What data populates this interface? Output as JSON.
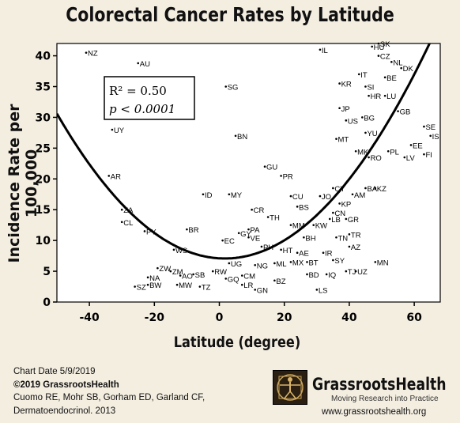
{
  "chart_data": {
    "type": "scatter",
    "title": "Colorectal Cancer Rates by Latitude",
    "xlabel": "Latitude (degree)",
    "ylabel": "Incidence Rate per 100,000",
    "xlim": [
      -50,
      68
    ],
    "ylim": [
      0,
      42
    ],
    "xticks": [
      -40,
      -20,
      0,
      20,
      40,
      60
    ],
    "yticks": [
      0,
      5,
      10,
      15,
      20,
      25,
      30,
      35,
      40
    ],
    "stats_box": {
      "r2": "R² = 0.50",
      "p": "p < 0.0001"
    },
    "fit_curve": {
      "type": "quadratic",
      "a": 0.0088,
      "b": -0.03,
      "c": 7.1
    },
    "points": [
      {
        "label": "NZ",
        "x": -41,
        "y": 40.5
      },
      {
        "label": "AU",
        "x": -25,
        "y": 38.8
      },
      {
        "label": "UY",
        "x": -33,
        "y": 28
      },
      {
        "label": "AR",
        "x": -34,
        "y": 20.5
      },
      {
        "label": "ZA",
        "x": -30,
        "y": 15
      },
      {
        "label": "CL",
        "x": -30,
        "y": 13
      },
      {
        "label": "PY",
        "x": -23,
        "y": 11.5
      },
      {
        "label": "BR",
        "x": -10,
        "y": 11.8
      },
      {
        "label": "WS",
        "x": -14,
        "y": 8.5
      },
      {
        "label": "ZW",
        "x": -19,
        "y": 5.5
      },
      {
        "label": "ZM",
        "x": -15,
        "y": 5
      },
      {
        "label": "NA",
        "x": -22,
        "y": 4
      },
      {
        "label": "SZ",
        "x": -26,
        "y": 2.5
      },
      {
        "label": "BW",
        "x": -22,
        "y": 2.8
      },
      {
        "label": "AO",
        "x": -12,
        "y": 4.3
      },
      {
        "label": "SB",
        "x": -8,
        "y": 4.5
      },
      {
        "label": "MW",
        "x": -13,
        "y": 2.8
      },
      {
        "label": "TZ",
        "x": -6,
        "y": 2.5
      },
      {
        "label": "RW",
        "x": -2,
        "y": 5
      },
      {
        "label": "GQ",
        "x": 2,
        "y": 3.8
      },
      {
        "label": "UG",
        "x": 3,
        "y": 6.3
      },
      {
        "label": "LR",
        "x": 7,
        "y": 2.8
      },
      {
        "label": "CM",
        "x": 7,
        "y": 4.3
      },
      {
        "label": "GN",
        "x": 11,
        "y": 2
      },
      {
        "label": "BZ",
        "x": 17,
        "y": 3.5
      },
      {
        "label": "NG",
        "x": 11,
        "y": 6
      },
      {
        "label": "ML",
        "x": 17,
        "y": 6.3
      },
      {
        "label": "MX",
        "x": 22,
        "y": 6.5
      },
      {
        "label": "BT",
        "x": 27,
        "y": 6.5
      },
      {
        "label": "SY",
        "x": 35,
        "y": 6.8
      },
      {
        "label": "BD",
        "x": 27,
        "y": 4.5
      },
      {
        "label": "IQ",
        "x": 33,
        "y": 4.5
      },
      {
        "label": "TJ",
        "x": 39,
        "y": 5
      },
      {
        "label": "UZ",
        "x": 42,
        "y": 5
      },
      {
        "label": "LS",
        "x": 30,
        "y": 2
      },
      {
        "label": "MN",
        "x": 48,
        "y": 6.5
      },
      {
        "label": "AE",
        "x": 24,
        "y": 8
      },
      {
        "label": "IR",
        "x": 32,
        "y": 8
      },
      {
        "label": "HT",
        "x": 19,
        "y": 8.5
      },
      {
        "label": "PH",
        "x": 13,
        "y": 9
      },
      {
        "label": "AZ",
        "x": 40,
        "y": 9
      },
      {
        "label": "EC",
        "x": 1,
        "y": 10
      },
      {
        "label": "GY",
        "x": 6,
        "y": 11.2
      },
      {
        "label": "PA",
        "x": 9,
        "y": 11.8
      },
      {
        "label": "VE",
        "x": 9,
        "y": 10.5
      },
      {
        "label": "BH",
        "x": 26,
        "y": 10.5
      },
      {
        "label": "TN",
        "x": 36,
        "y": 10.5
      },
      {
        "label": "TR",
        "x": 40,
        "y": 11
      },
      {
        "label": "MM",
        "x": 22,
        "y": 12.5
      },
      {
        "label": "KW",
        "x": 29,
        "y": 12.5
      },
      {
        "label": "LB",
        "x": 34,
        "y": 13.5
      },
      {
        "label": "GR",
        "x": 39,
        "y": 13.5
      },
      {
        "label": "CN",
        "x": 35,
        "y": 14.5
      },
      {
        "label": "TH",
        "x": 15,
        "y": 13.8
      },
      {
        "label": "CR",
        "x": 10,
        "y": 15
      },
      {
        "label": "BS",
        "x": 24,
        "y": 15.5
      },
      {
        "label": "KP",
        "x": 37,
        "y": 16
      },
      {
        "label": "CU",
        "x": 22,
        "y": 17.2
      },
      {
        "label": "JO",
        "x": 31,
        "y": 17.2
      },
      {
        "label": "AM",
        "x": 41,
        "y": 17.5
      },
      {
        "label": "CY",
        "x": 35,
        "y": 18.5
      },
      {
        "label": "BA",
        "x": 45,
        "y": 18.5
      },
      {
        "label": "KZ",
        "x": 48,
        "y": 18.5
      },
      {
        "label": "ID",
        "x": -5,
        "y": 17.5
      },
      {
        "label": "MY",
        "x": 3,
        "y": 17.5
      },
      {
        "label": "PR",
        "x": 19,
        "y": 20.5
      },
      {
        "label": "GU",
        "x": 14,
        "y": 22
      },
      {
        "label": "BN",
        "x": 5,
        "y": 27
      },
      {
        "label": "SG",
        "x": 2,
        "y": 35
      },
      {
        "label": "MT",
        "x": 36,
        "y": 26.5
      },
      {
        "label": "MK",
        "x": 42,
        "y": 24.5
      },
      {
        "label": "RO",
        "x": 46,
        "y": 23.5
      },
      {
        "label": "YU",
        "x": 45,
        "y": 27.5
      },
      {
        "label": "PL",
        "x": 52,
        "y": 24.5
      },
      {
        "label": "LV",
        "x": 57,
        "y": 23.5
      },
      {
        "label": "EE",
        "x": 59,
        "y": 25.5
      },
      {
        "label": "FI",
        "x": 63,
        "y": 24
      },
      {
        "label": "SE",
        "x": 63,
        "y": 28.5
      },
      {
        "label": "IS",
        "x": 65,
        "y": 27
      },
      {
        "label": "GB",
        "x": 55,
        "y": 31
      },
      {
        "label": "JP",
        "x": 37,
        "y": 31.5
      },
      {
        "label": "US",
        "x": 39,
        "y": 29.5
      },
      {
        "label": "BG",
        "x": 44,
        "y": 30
      },
      {
        "label": "HR",
        "x": 46,
        "y": 33.5
      },
      {
        "label": "LU",
        "x": 51,
        "y": 33.5
      },
      {
        "label": "KR",
        "x": 37,
        "y": 35.5
      },
      {
        "label": "SI",
        "x": 45,
        "y": 35
      },
      {
        "label": "IT",
        "x": 43,
        "y": 37
      },
      {
        "label": "BE",
        "x": 51,
        "y": 36.5
      },
      {
        "label": "NL",
        "x": 53,
        "y": 39
      },
      {
        "label": "DK",
        "x": 56,
        "y": 38
      },
      {
        "label": "CZ",
        "x": 49,
        "y": 40
      },
      {
        "label": "HU",
        "x": 47,
        "y": 41.5
      },
      {
        "label": "SK",
        "x": 49,
        "y": 42
      },
      {
        "label": "IL",
        "x": 31,
        "y": 41
      }
    ]
  },
  "footer": {
    "date": "Chart Date 5/9/2019",
    "copyright": "©2019 GrassrootsHealth",
    "authors": "Cuomo RE, Mohr SB, Gorham ED, Garland CF,",
    "journal": "Dermatoendocrinol. 2013"
  },
  "brand": {
    "name": "GrassrootsHealth",
    "tagline": "Moving Research into Practice",
    "url": "www.grassrootshealth.org"
  }
}
